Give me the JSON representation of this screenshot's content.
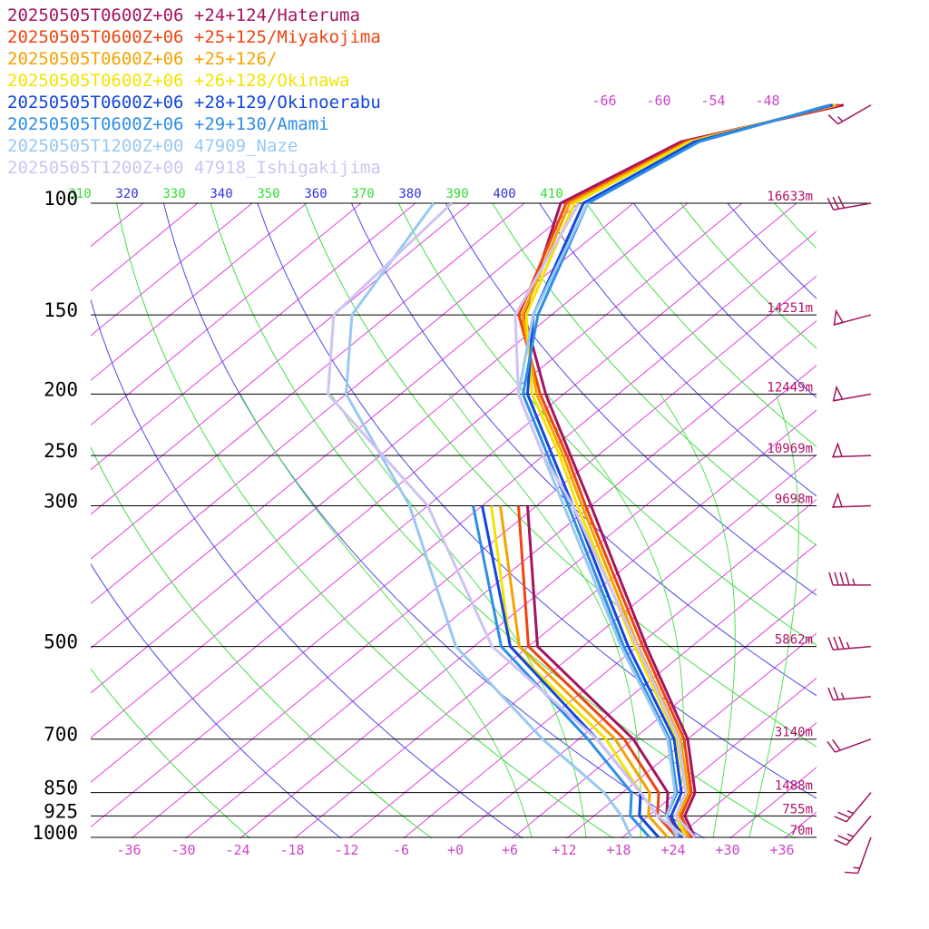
{
  "chart_data": {
    "type": "skew-t log-p sounding",
    "legend": [
      {
        "label": "20250505T0600Z+06 +24+124/Hateruma",
        "color": "#a3145f"
      },
      {
        "label": "20250505T0600Z+06 +25+125/Miyakojima",
        "color": "#ee4411"
      },
      {
        "label": "20250505T0600Z+06 +25+126/",
        "color": "#f5a300"
      },
      {
        "label": "20250505T0600Z+06 +26+128/Okinawa",
        "color": "#f2e400"
      },
      {
        "label": "20250505T0600Z+06 +28+129/Okinoerabu",
        "color": "#1146e0"
      },
      {
        "label": "20250505T0600Z+06 +29+130/Amami",
        "color": "#2e8ee6"
      },
      {
        "label": "20250505T1200Z+00 47909_Naze",
        "color": "#99c8f0"
      },
      {
        "label": "20250505T1200Z+00 47918_Ishigakijima",
        "color": "#cfc3f2"
      }
    ],
    "pressure_levels": [
      100,
      150,
      200,
      250,
      300,
      500,
      700,
      850,
      925,
      1000
    ],
    "pressure_labels": [
      "100",
      "150",
      "200",
      "250",
      "300",
      "500",
      "700",
      "850",
      "925",
      "1000"
    ],
    "heights": [
      {
        "p": 100,
        "label": "16633m"
      },
      {
        "p": 150,
        "label": "14251m"
      },
      {
        "p": 200,
        "label": "12449m"
      },
      {
        "p": 250,
        "label": "10969m"
      },
      {
        "p": 300,
        "label": "9698m"
      },
      {
        "p": 500,
        "label": "5862m"
      },
      {
        "p": 700,
        "label": "3140m"
      },
      {
        "p": 850,
        "label": "1488m"
      },
      {
        "p": 925,
        "label": "755m"
      },
      {
        "p": 1000,
        "label": "70m"
      }
    ],
    "temperature_ticks": [
      {
        "t": -36,
        "label": "-36"
      },
      {
        "t": -30,
        "label": "-30"
      },
      {
        "t": -24,
        "label": "-24"
      },
      {
        "t": -18,
        "label": "-18"
      },
      {
        "t": -12,
        "label": "-12"
      },
      {
        "t": -6,
        "label": "-6"
      },
      {
        "t": 0,
        "label": "+0"
      },
      {
        "t": 6,
        "label": "+6"
      },
      {
        "t": 12,
        "label": "+12"
      },
      {
        "t": 18,
        "label": "+18"
      },
      {
        "t": 24,
        "label": "+24"
      },
      {
        "t": 30,
        "label": "+30"
      },
      {
        "t": 36,
        "label": "+36"
      }
    ],
    "isotherm_top_labels": [
      "-66",
      "-60",
      "-54",
      "-48"
    ],
    "theta_labels": [
      {
        "value": "310",
        "color": "#33dd33"
      },
      {
        "value": "320",
        "color": "#3333dd"
      },
      {
        "value": "330",
        "color": "#33dd33"
      },
      {
        "value": "340",
        "color": "#3333dd"
      },
      {
        "value": "350",
        "color": "#33dd33"
      },
      {
        "value": "360",
        "color": "#3333dd"
      },
      {
        "value": "370",
        "color": "#33dd33"
      },
      {
        "value": "380",
        "color": "#3333dd"
      },
      {
        "value": "390",
        "color": "#33dd33"
      },
      {
        "value": "400",
        "color": "#3333dd"
      },
      {
        "value": "410",
        "color": "#33dd33"
      }
    ],
    "soundings": [
      {
        "name": "20250505T0600Z+06 +24+124/Hateruma",
        "color": "#a3145f",
        "temperature": [
          [
            1000,
            26
          ],
          [
            925,
            22
          ],
          [
            850,
            20
          ],
          [
            700,
            12
          ],
          [
            500,
            -5
          ],
          [
            300,
            -30
          ],
          [
            250,
            -39
          ],
          [
            200,
            -50
          ],
          [
            150,
            -63
          ],
          [
            100,
            -74
          ],
          [
            80,
            -69
          ],
          [
            70,
            -56
          ]
        ],
        "dewpoint": [
          [
            1000,
            25
          ],
          [
            925,
            20
          ],
          [
            850,
            17
          ],
          [
            700,
            6
          ],
          [
            500,
            -17
          ],
          [
            300,
            -37
          ]
        ]
      },
      {
        "name": "20250505T0600Z+06 +25+125/Miyakojima",
        "color": "#ee4411",
        "temperature": [
          [
            1000,
            25.6
          ],
          [
            925,
            21.6
          ],
          [
            850,
            19.6
          ],
          [
            700,
            11.6
          ],
          [
            500,
            -5.4
          ],
          [
            300,
            -30.6
          ],
          [
            250,
            -39.4
          ],
          [
            200,
            -50.6
          ],
          [
            150,
            -63.6
          ],
          [
            100,
            -73.4
          ],
          [
            80,
            -68.5
          ],
          [
            70,
            -56.5
          ]
        ],
        "dewpoint": [
          [
            1000,
            24
          ],
          [
            925,
            19
          ],
          [
            850,
            16
          ],
          [
            700,
            5
          ],
          [
            500,
            -18
          ],
          [
            300,
            -38
          ]
        ]
      },
      {
        "name": "20250505T0600Z+06 +25+126/",
        "color": "#f5a300",
        "temperature": [
          [
            1000,
            25.3
          ],
          [
            925,
            21.3
          ],
          [
            850,
            19.3
          ],
          [
            700,
            11.2
          ],
          [
            500,
            -5.9
          ],
          [
            300,
            -31
          ],
          [
            250,
            -39.8
          ],
          [
            200,
            -51
          ],
          [
            150,
            -63.2
          ],
          [
            100,
            -73
          ],
          [
            80,
            -68.2
          ],
          [
            70,
            -56.8
          ]
        ],
        "dewpoint": [
          [
            1000,
            23
          ],
          [
            925,
            18
          ],
          [
            850,
            15
          ],
          [
            700,
            4
          ],
          [
            500,
            -19
          ],
          [
            300,
            -40
          ]
        ]
      },
      {
        "name": "20250505T0600Z+06 +26+128/Okinawa",
        "color": "#f2e400",
        "temperature": [
          [
            1000,
            25
          ],
          [
            925,
            21
          ],
          [
            850,
            19
          ],
          [
            700,
            10.8
          ],
          [
            500,
            -6.3
          ],
          [
            300,
            -31.5
          ],
          [
            250,
            -40.2
          ],
          [
            200,
            -51.5
          ],
          [
            150,
            -62.8
          ],
          [
            100,
            -72.5
          ],
          [
            80,
            -68
          ],
          [
            70,
            -57
          ]
        ],
        "dewpoint": [
          [
            1000,
            22
          ],
          [
            925,
            17
          ],
          [
            850,
            14
          ],
          [
            700,
            3
          ],
          [
            500,
            -20
          ],
          [
            300,
            -41
          ]
        ]
      },
      {
        "name": "20250505T0600Z+06 +28+129/Okinoerabu",
        "color": "#1146e0",
        "temperature": [
          [
            1000,
            24.5
          ],
          [
            925,
            20.5
          ],
          [
            850,
            18.5
          ],
          [
            700,
            10.5
          ],
          [
            500,
            -7
          ],
          [
            300,
            -32
          ],
          [
            250,
            -41
          ],
          [
            200,
            -52
          ],
          [
            150,
            -62
          ],
          [
            100,
            -71.5
          ],
          [
            80,
            -67.5
          ],
          [
            70,
            -57.2
          ]
        ],
        "dewpoint": [
          [
            1000,
            22
          ],
          [
            925,
            17
          ],
          [
            850,
            14
          ],
          [
            700,
            2
          ],
          [
            500,
            -20
          ],
          [
            300,
            -42
          ]
        ]
      },
      {
        "name": "20250505T0600Z+06 +29+130/Amami",
        "color": "#2e8ee6",
        "temperature": [
          [
            1000,
            24
          ],
          [
            925,
            20
          ],
          [
            850,
            18
          ],
          [
            700,
            10
          ],
          [
            500,
            -7.5
          ],
          [
            300,
            -32.5
          ],
          [
            250,
            -41.5
          ],
          [
            200,
            -52.5
          ],
          [
            150,
            -61.5
          ],
          [
            100,
            -71
          ],
          [
            80,
            -67
          ],
          [
            70,
            -57.5
          ]
        ],
        "dewpoint": [
          [
            1000,
            21
          ],
          [
            925,
            16
          ],
          [
            850,
            13
          ],
          [
            700,
            1
          ],
          [
            500,
            -21
          ],
          [
            300,
            -43
          ]
        ]
      },
      {
        "name": "20250505T1200Z+00 47909_Naze",
        "color": "#99c8f0",
        "temperature": [
          [
            1000,
            24
          ],
          [
            925,
            20
          ],
          [
            850,
            17.8
          ],
          [
            700,
            9.8
          ],
          [
            500,
            -7.8
          ],
          [
            300,
            -33
          ],
          [
            250,
            -42
          ],
          [
            200,
            -53
          ],
          [
            150,
            -62
          ],
          [
            100,
            -71
          ]
        ],
        "dewpoint": [
          [
            1000,
            19
          ],
          [
            925,
            15
          ],
          [
            850,
            10
          ],
          [
            700,
            -4
          ],
          [
            500,
            -26
          ],
          [
            300,
            -50
          ],
          [
            200,
            -72
          ],
          [
            150,
            -82
          ],
          [
            100,
            -88
          ]
        ]
      },
      {
        "name": "20250505T1200Z+00 47918_Ishigakijima",
        "color": "#cfc3f2",
        "temperature": [
          [
            1000,
            26
          ],
          [
            925,
            21
          ],
          [
            850,
            19
          ],
          [
            700,
            11
          ],
          [
            500,
            -6
          ],
          [
            300,
            -32
          ],
          [
            250,
            -42
          ],
          [
            200,
            -53
          ],
          [
            150,
            -64
          ],
          [
            100,
            -72
          ]
        ],
        "dewpoint": [
          [
            1000,
            25
          ],
          [
            925,
            19
          ],
          [
            850,
            14
          ],
          [
            700,
            2
          ],
          [
            500,
            -22
          ],
          [
            300,
            -48
          ],
          [
            200,
            -74
          ],
          [
            150,
            -84
          ],
          [
            100,
            -86
          ]
        ]
      }
    ],
    "wind_barbs": [
      {
        "p": 70,
        "speed_kt": 15,
        "dir_deg": 240
      },
      {
        "p": 100,
        "speed_kt": 30,
        "dir_deg": 260
      },
      {
        "p": 150,
        "speed_kt": 50,
        "dir_deg": 255
      },
      {
        "p": 200,
        "speed_kt": 50,
        "dir_deg": 260
      },
      {
        "p": 250,
        "speed_kt": 50,
        "dir_deg": 268
      },
      {
        "p": 300,
        "speed_kt": 50,
        "dir_deg": 268
      },
      {
        "p": 400,
        "speed_kt": 45,
        "dir_deg": 270
      },
      {
        "p": 500,
        "speed_kt": 35,
        "dir_deg": 265
      },
      {
        "p": 600,
        "speed_kt": 25,
        "dir_deg": 265
      },
      {
        "p": 700,
        "speed_kt": 20,
        "dir_deg": 250
      },
      {
        "p": 850,
        "speed_kt": 25,
        "dir_deg": 220
      },
      {
        "p": 925,
        "speed_kt": 25,
        "dir_deg": 220
      },
      {
        "p": 1000,
        "speed_kt": 15,
        "dir_deg": 200
      }
    ]
  }
}
